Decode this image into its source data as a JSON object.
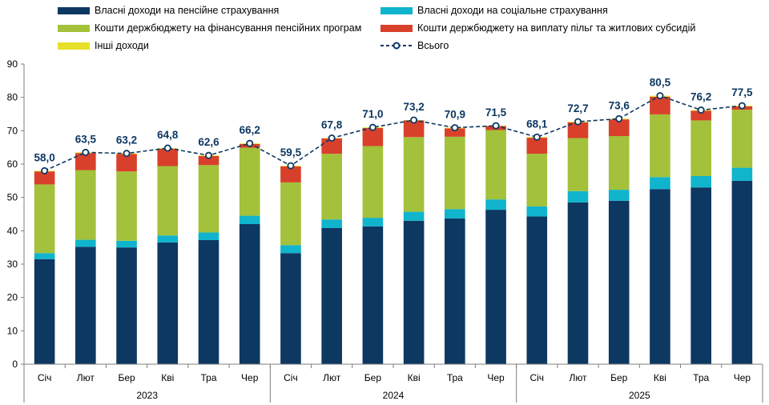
{
  "chart_data": {
    "type": "bar",
    "stacked": true,
    "legend_position": "top",
    "grid": false,
    "ylim": [
      0,
      90
    ],
    "yticks": [
      0,
      10,
      20,
      30,
      40,
      50,
      60,
      70,
      80,
      90
    ],
    "categories": [
      "Січ",
      "Лют",
      "Бер",
      "Кві",
      "Тра",
      "Чер",
      "Січ",
      "Лют",
      "Бер",
      "Кві",
      "Тра",
      "Чер",
      "Січ",
      "Лют",
      "Бер",
      "Кві",
      "Тра",
      "Чер"
    ],
    "groups": [
      {
        "label": "2023",
        "count": 6
      },
      {
        "label": "2024",
        "count": 6
      },
      {
        "label": "2025",
        "count": 6
      }
    ],
    "series": [
      {
        "name": "Власні доходи на пенсійне страхування",
        "color": "#0d3862",
        "values": [
          31.5,
          35.2,
          35.0,
          36.5,
          37.2,
          42.0,
          33.3,
          40.8,
          41.3,
          43.0,
          43.7,
          46.3,
          44.3,
          48.5,
          49.0,
          52.5,
          53.0,
          55.0
        ]
      },
      {
        "name": "Власні доходи на соціальне страхування",
        "color": "#10b4cc",
        "values": [
          1.8,
          2.1,
          2.0,
          2.1,
          2.3,
          2.5,
          2.4,
          2.6,
          2.6,
          2.7,
          2.8,
          3.1,
          3.0,
          3.4,
          3.3,
          3.6,
          3.4,
          3.9
        ]
      },
      {
        "name": "Кошти держбюджету на фінансування пенсійних програм",
        "color": "#a3c13a",
        "values": [
          20.6,
          20.9,
          20.8,
          20.8,
          20.2,
          20.4,
          18.8,
          19.7,
          21.5,
          22.4,
          21.7,
          20.8,
          15.8,
          15.9,
          16.1,
          18.8,
          16.7,
          17.4
        ]
      },
      {
        "name": "Кошти держбюджету на виплату пільг та житлових субсидій",
        "color": "#d9402b",
        "values": [
          3.9,
          5.1,
          5.2,
          5.2,
          2.7,
          1.1,
          4.8,
          4.6,
          5.4,
          5.0,
          2.5,
          1.2,
          4.8,
          4.7,
          5.0,
          5.3,
          2.9,
          1.0
        ]
      },
      {
        "name": "Інші доходи",
        "color": "#e6e02a",
        "values": [
          0.2,
          0.2,
          0.2,
          0.2,
          0.2,
          0.2,
          0.2,
          0.1,
          0.2,
          0.1,
          0.2,
          0.1,
          0.2,
          0.2,
          0.2,
          0.3,
          0.2,
          0.2
        ]
      }
    ],
    "total": {
      "name": "Всього",
      "color": "#0d3862",
      "values": [
        58.0,
        63.5,
        63.2,
        64.8,
        62.6,
        66.2,
        59.5,
        67.8,
        71.0,
        73.2,
        70.9,
        71.5,
        68.1,
        72.7,
        73.6,
        80.5,
        76.2,
        77.5
      ],
      "labels": [
        "58,0",
        "63,5",
        "63,2",
        "64,8",
        "62,6",
        "66,2",
        "59,5",
        "67,8",
        "71,0",
        "73,2",
        "70,9",
        "71,5",
        "68,1",
        "72,7",
        "73,6",
        "80,5",
        "76,2",
        "77,5"
      ]
    }
  }
}
